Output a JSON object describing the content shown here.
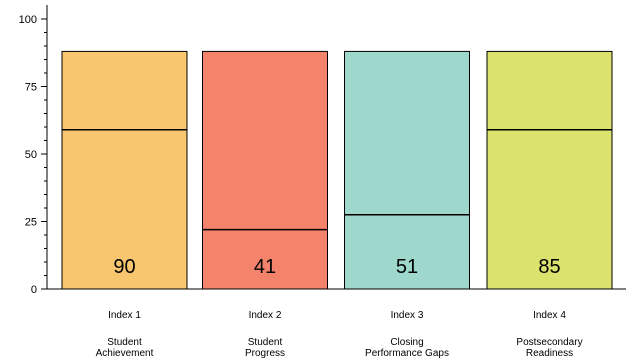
{
  "chart_data": {
    "type": "bar",
    "title": "",
    "xlabel": "",
    "ylabel": "",
    "ylim": [
      0,
      100
    ],
    "yticks": [
      0,
      25,
      50,
      75,
      100
    ],
    "ytick_labels": [
      "0",
      "25",
      "50",
      "75",
      "100"
    ],
    "minor_tick_step": 5,
    "grid": false,
    "legend": "none",
    "categories": [
      {
        "index_label": "Index 1",
        "name_lines": [
          "Student",
          "Achievement"
        ],
        "value": 90,
        "value_label": "90",
        "bar_height": 88,
        "marker_level": 59,
        "color": "#f7c66e"
      },
      {
        "index_label": "Index 2",
        "name_lines": [
          "Student",
          "Progress"
        ],
        "value": 41,
        "value_label": "41",
        "bar_height": 88,
        "marker_level": 22,
        "color": "#f4836c"
      },
      {
        "index_label": "Index 3",
        "name_lines": [
          "Closing",
          "Performance Gaps"
        ],
        "value": 51,
        "value_label": "51",
        "bar_height": 88,
        "marker_level": 27.5,
        "color": "#9ed8cd"
      },
      {
        "index_label": "Index 4",
        "name_lines": [
          "Postsecondary",
          "Readiness"
        ],
        "value": 85,
        "value_label": "85",
        "bar_height": 88,
        "marker_level": 59,
        "color": "#dbe26d"
      }
    ]
  }
}
